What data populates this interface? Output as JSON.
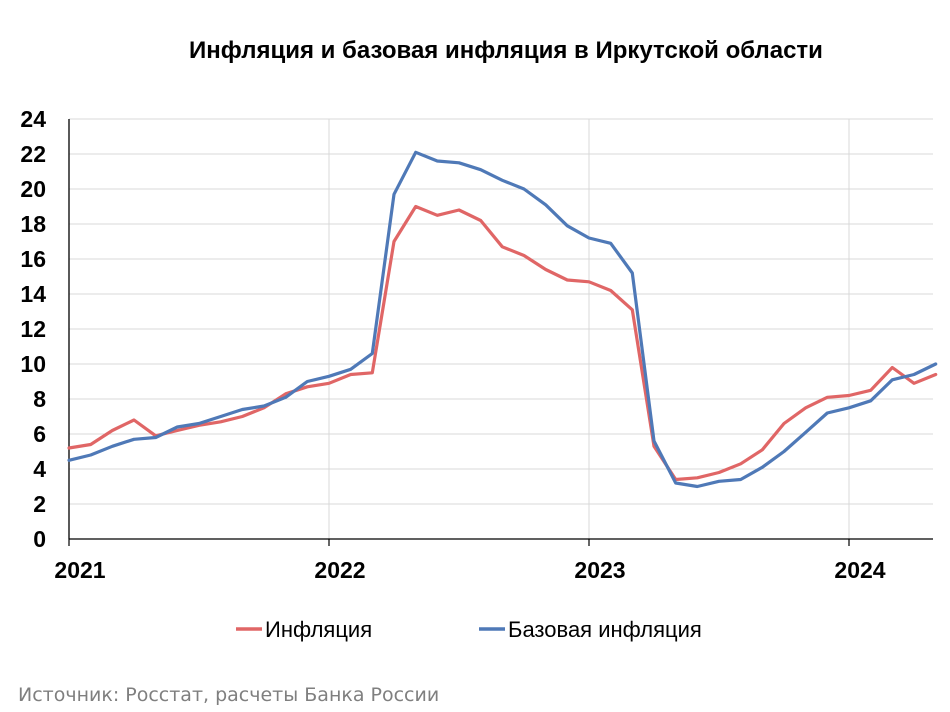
{
  "chart_data": {
    "type": "line",
    "title": "Инфляция и базовая инфляция в Иркутской области",
    "xlabel": "",
    "ylabel": "",
    "ylim": [
      0,
      24
    ],
    "yticks": [
      0,
      2,
      4,
      6,
      8,
      10,
      12,
      14,
      16,
      18,
      20,
      22,
      24
    ],
    "x_tick_labels": [
      "2021",
      "2022",
      "2023",
      "2024"
    ],
    "x_tick_months": [
      0,
      12,
      24,
      36
    ],
    "x_range_months": [
      0,
      40
    ],
    "grid": true,
    "legend_position": "bottom",
    "x": [
      "2021-01",
      "2021-02",
      "2021-03",
      "2021-04",
      "2021-05",
      "2021-06",
      "2021-07",
      "2021-08",
      "2021-09",
      "2021-10",
      "2021-11",
      "2021-12",
      "2022-01",
      "2022-02",
      "2022-03",
      "2022-04",
      "2022-05",
      "2022-06",
      "2022-07",
      "2022-08",
      "2022-09",
      "2022-10",
      "2022-11",
      "2022-12",
      "2023-01",
      "2023-02",
      "2023-03",
      "2023-04",
      "2023-05",
      "2023-06",
      "2023-07",
      "2023-08",
      "2023-09",
      "2023-10",
      "2023-11",
      "2023-12",
      "2024-01",
      "2024-02",
      "2024-03",
      "2024-04",
      "2024-05"
    ],
    "series": [
      {
        "name": "Инфляция",
        "color": "#e06666",
        "values": [
          5.2,
          5.4,
          6.2,
          6.8,
          5.9,
          6.2,
          6.5,
          6.7,
          7.0,
          7.5,
          8.3,
          8.7,
          8.9,
          9.4,
          9.5,
          17.0,
          19.0,
          18.5,
          18.8,
          18.2,
          16.7,
          16.2,
          15.4,
          14.8,
          14.7,
          14.2,
          13.1,
          5.3,
          3.4,
          3.5,
          3.8,
          4.3,
          5.1,
          6.6,
          7.5,
          8.1,
          8.2,
          8.5,
          9.8,
          8.9,
          9.4
        ]
      },
      {
        "name": "Базовая инфляция",
        "color": "#4f79b7",
        "values": [
          4.5,
          4.8,
          5.3,
          5.7,
          5.8,
          6.4,
          6.6,
          7.0,
          7.4,
          7.6,
          8.1,
          9.0,
          9.3,
          9.7,
          10.6,
          19.7,
          22.1,
          21.6,
          21.5,
          21.1,
          20.5,
          20.0,
          19.1,
          17.9,
          17.2,
          16.9,
          15.2,
          5.6,
          3.2,
          3.0,
          3.3,
          3.4,
          4.1,
          5.0,
          6.1,
          7.2,
          7.5,
          7.9,
          9.1,
          9.4,
          10.0
        ]
      }
    ]
  },
  "source": "Источник: Росстат, расчеты Банка России"
}
